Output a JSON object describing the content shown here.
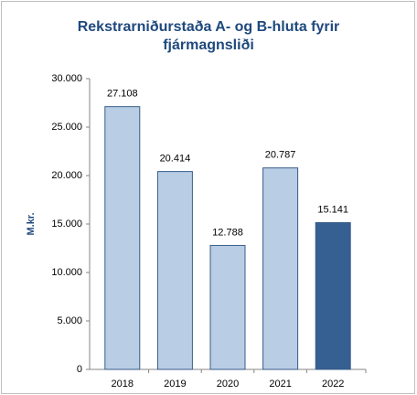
{
  "chart_data": {
    "type": "bar",
    "title": "Rekstrarniðurstaða A- og B-hluta fyrir fjármagnsliði",
    "y_label": "M.kr.",
    "categories": [
      "2018",
      "2019",
      "2020",
      "2021",
      "2022"
    ],
    "values": [
      27108,
      20414,
      12788,
      20787,
      15141
    ],
    "value_labels": [
      "27.108",
      "20.414",
      "12.788",
      "20.787",
      "15.141"
    ],
    "colors": [
      "#b9cde5",
      "#b9cde5",
      "#b9cde5",
      "#b9cde5",
      "#366092"
    ],
    "ylim": [
      0,
      30000
    ],
    "yticks": [
      0,
      {
        "value": 5000,
        "label": "5.000"
      },
      {
        "value": 10000,
        "label": "10.000"
      },
      {
        "value": 15000,
        "label": "15.000"
      },
      {
        "value": 20000,
        "label": "20.000"
      },
      {
        "value": 25000,
        "label": "25.000"
      },
      {
        "value": 30000,
        "label": "30.000"
      }
    ],
    "grid": false
  }
}
